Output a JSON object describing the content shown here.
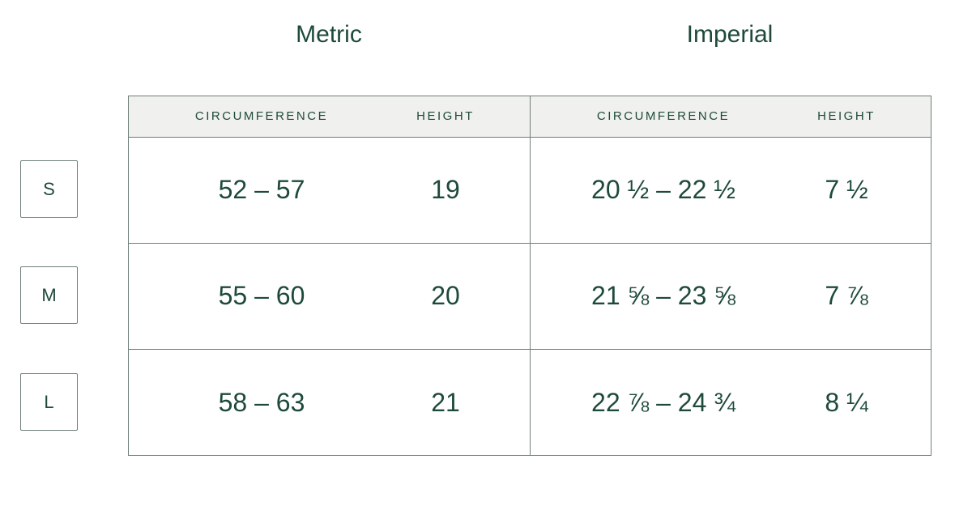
{
  "groups": [
    "Metric",
    "Imperial"
  ],
  "table": {
    "header": [
      "CIRCUMFERENCE",
      "HEIGHT",
      "CIRCUMFERENCE",
      "HEIGHT"
    ],
    "rows": [
      [
        "52 – 57",
        "19",
        "20 ½ – 22 ½",
        "7 ½"
      ],
      [
        "55 – 60",
        "20",
        "21 ⅝ – 23 ⅝",
        "7 ⅞"
      ],
      [
        "58 – 63",
        "21",
        "22 ⅞ – 24 ¾",
        "8 ¼"
      ]
    ]
  },
  "sizes": [
    "S",
    "M",
    "L"
  ]
}
